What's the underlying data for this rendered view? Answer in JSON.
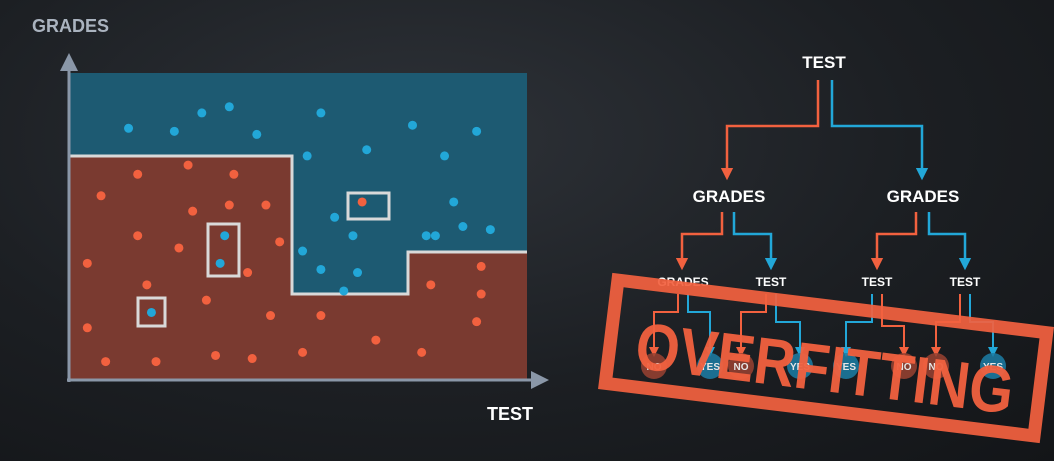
{
  "colors": {
    "background": "#1c1f23",
    "blue_region": "#1d5a72",
    "red_region": "#7a3a30",
    "blue": "#22a7d8",
    "red": "#f2613f",
    "boundary": "#d9d9d9",
    "axis": "#8a97a8",
    "axis_label": "#aab3bf",
    "tree_text": "#ffffff",
    "stamp": "#f2613f"
  },
  "plot": {
    "y_axis_label": "GRADES",
    "x_axis_label": "TEST",
    "blue_points": [
      [
        0.13,
        0.82
      ],
      [
        0.23,
        0.81
      ],
      [
        0.29,
        0.87
      ],
      [
        0.35,
        0.89
      ],
      [
        0.41,
        0.8
      ],
      [
        0.55,
        0.87
      ],
      [
        0.65,
        0.75
      ],
      [
        0.75,
        0.83
      ],
      [
        0.82,
        0.73
      ],
      [
        0.89,
        0.81
      ],
      [
        0.52,
        0.73
      ],
      [
        0.58,
        0.53
      ],
      [
        0.62,
        0.47
      ],
      [
        0.51,
        0.42
      ],
      [
        0.55,
        0.36
      ],
      [
        0.63,
        0.35
      ],
      [
        0.6,
        0.29
      ],
      [
        0.78,
        0.47
      ],
      [
        0.84,
        0.58
      ],
      [
        0.8,
        0.47
      ],
      [
        0.86,
        0.5
      ],
      [
        0.92,
        0.49
      ],
      [
        0.34,
        0.47
      ],
      [
        0.33,
        0.38
      ],
      [
        0.18,
        0.22
      ]
    ],
    "red_points": [
      [
        0.07,
        0.6
      ],
      [
        0.15,
        0.67
      ],
      [
        0.26,
        0.7
      ],
      [
        0.36,
        0.67
      ],
      [
        0.27,
        0.55
      ],
      [
        0.35,
        0.57
      ],
      [
        0.43,
        0.57
      ],
      [
        0.15,
        0.47
      ],
      [
        0.04,
        0.38
      ],
      [
        0.17,
        0.31
      ],
      [
        0.24,
        0.43
      ],
      [
        0.39,
        0.35
      ],
      [
        0.46,
        0.45
      ],
      [
        0.3,
        0.26
      ],
      [
        0.44,
        0.21
      ],
      [
        0.04,
        0.17
      ],
      [
        0.08,
        0.06
      ],
      [
        0.19,
        0.06
      ],
      [
        0.32,
        0.08
      ],
      [
        0.4,
        0.07
      ],
      [
        0.51,
        0.09
      ],
      [
        0.55,
        0.21
      ],
      [
        0.67,
        0.13
      ],
      [
        0.77,
        0.09
      ],
      [
        0.79,
        0.31
      ],
      [
        0.9,
        0.37
      ],
      [
        0.9,
        0.28
      ],
      [
        0.89,
        0.19
      ],
      [
        0.64,
        0.58
      ]
    ]
  },
  "tree": {
    "root": "TEST",
    "level1": [
      "GRADES",
      "GRADES"
    ],
    "level2": [
      "GRADES",
      "TEST",
      "TEST",
      "TEST"
    ],
    "leaves": [
      "NO",
      "YES",
      "NO",
      "YES",
      "YES",
      "NO",
      "NO",
      "YES"
    ]
  },
  "stamp": {
    "text": "OVERFITTING"
  }
}
